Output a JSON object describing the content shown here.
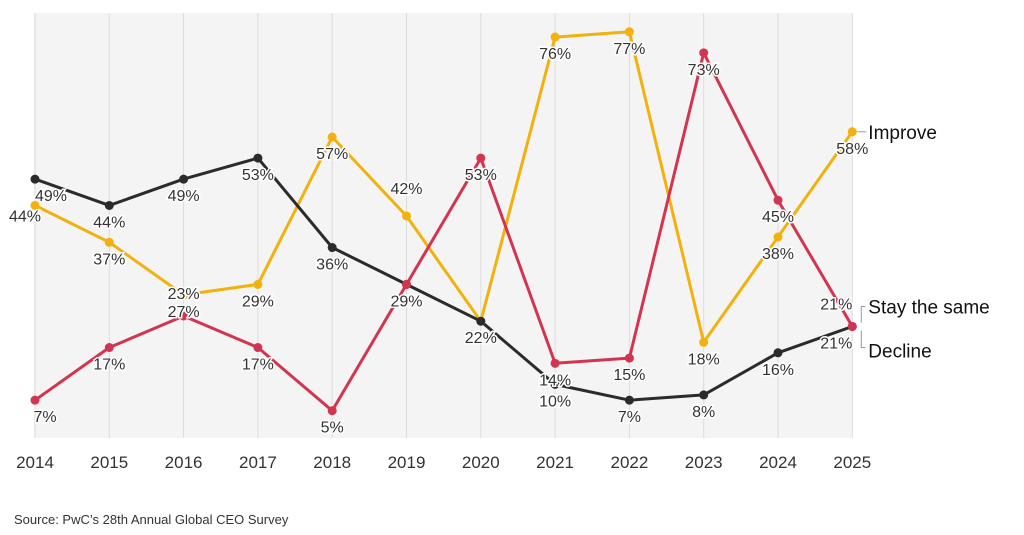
{
  "chart_data": {
    "type": "line",
    "categories": [
      "2014",
      "2015",
      "2016",
      "2017",
      "2018",
      "2019",
      "2020",
      "2021",
      "2022",
      "2023",
      "2024",
      "2025"
    ],
    "series": [
      {
        "name": "Improve",
        "color": "#F2B10D",
        "values": [
          44,
          37,
          27,
          29,
          57,
          42,
          22,
          76,
          77,
          18,
          38,
          58
        ],
        "labels": [
          "44%",
          "37%",
          "27%",
          "29%",
          "57%",
          "42%",
          "22%",
          "76%",
          "77%",
          "18%",
          "38%",
          "58%"
        ]
      },
      {
        "name": "Stay the same",
        "color": "#2B2B2B",
        "values": [
          49,
          44,
          49,
          53,
          36,
          29,
          22,
          10,
          7,
          8,
          16,
          21
        ],
        "labels": [
          "49%",
          "44%",
          "49%",
          "53%",
          "36%",
          "29%",
          "22%",
          "10%",
          "7%",
          "8%",
          "16%",
          "21%"
        ]
      },
      {
        "name": "Decline",
        "color": "#D2354F",
        "values": [
          7,
          17,
          23,
          17,
          5,
          29,
          53,
          14,
          15,
          73,
          45,
          21
        ],
        "labels": [
          "7%",
          "17%",
          "23%",
          "17%",
          "5%",
          "29%",
          "53%",
          "14%",
          "15%",
          "73%",
          "45%",
          "21%"
        ]
      }
    ],
    "ylim": [
      0,
      80
    ],
    "grid": "vertical",
    "legend": "right",
    "title": "",
    "xlabel": "",
    "ylabel": ""
  },
  "source": "Source: PwC’s 28th Annual Global CEO Survey"
}
